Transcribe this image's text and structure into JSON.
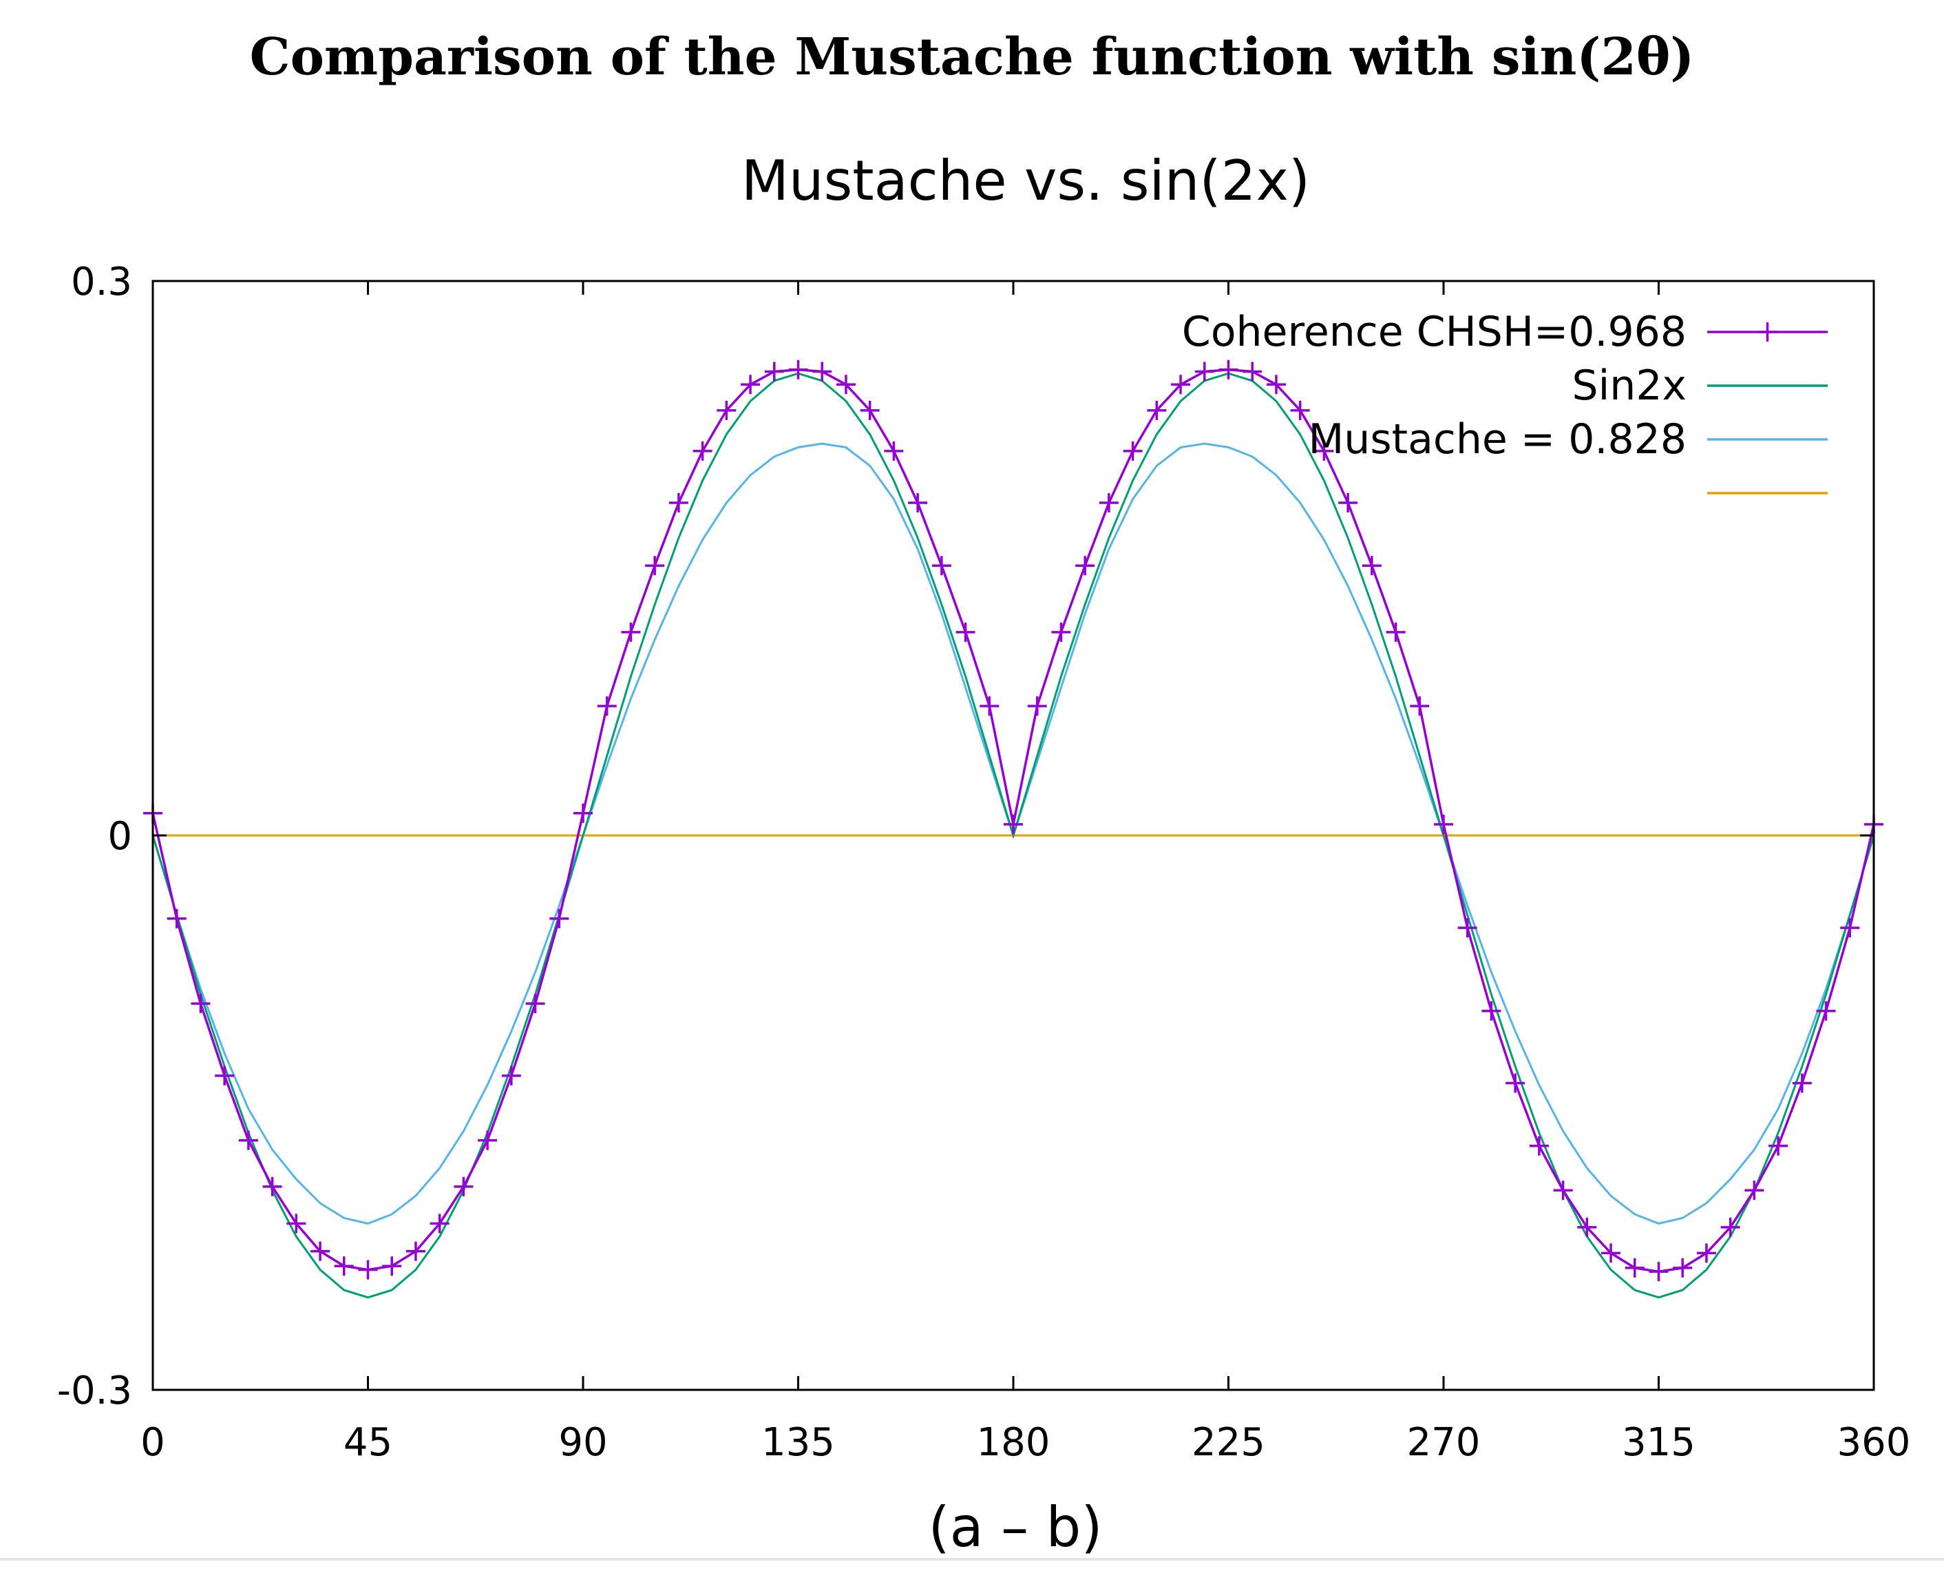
{
  "page_title": "Comparison of the Mustache function with sin(2θ)",
  "chart_data": {
    "type": "line",
    "title": "Mustache vs. sin(2x)",
    "xlabel": "(a – b)",
    "ylabel": "",
    "xlim": [
      0,
      360
    ],
    "ylim": [
      -0.3,
      0.3
    ],
    "x_ticks": [
      0,
      45,
      90,
      135,
      180,
      225,
      270,
      315,
      360
    ],
    "y_ticks": [
      -0.3,
      0,
      0.3
    ],
    "y_tick_labels": [
      "-0.3",
      "0",
      "0.3"
    ],
    "grid": false,
    "legend_position": "top-right",
    "colors": {
      "coherence": "#9400d3",
      "sin2x": "#009e73",
      "mustache": "#56b4e9",
      "baseline": "#e69f00"
    },
    "series": [
      {
        "name": "Coherence CHSH=0.968",
        "marker": "plus",
        "x": [
          0,
          5,
          10,
          15,
          20,
          25,
          30,
          35,
          40,
          45,
          50,
          55,
          60,
          65,
          70,
          75,
          80,
          85,
          90,
          95,
          100,
          105,
          110,
          115,
          120,
          125,
          130,
          135,
          140,
          145,
          150,
          155,
          160,
          165,
          170,
          175,
          180,
          185,
          190,
          195,
          200,
          205,
          210,
          215,
          220,
          225,
          230,
          235,
          240,
          245,
          250,
          255,
          260,
          265,
          270,
          275,
          280,
          285,
          290,
          295,
          300,
          305,
          310,
          315,
          320,
          325,
          330,
          335,
          340,
          345,
          350,
          355,
          360
        ],
        "values": [
          0.012,
          -0.045,
          -0.091,
          -0.13,
          -0.165,
          -0.19,
          -0.21,
          -0.225,
          -0.233,
          -0.235,
          -0.233,
          -0.225,
          -0.21,
          -0.19,
          -0.165,
          -0.13,
          -0.091,
          -0.045,
          0.012,
          0.07,
          0.11,
          0.146,
          0.18,
          0.208,
          0.23,
          0.244,
          0.251,
          0.252,
          0.251,
          0.244,
          0.23,
          0.208,
          0.18,
          0.146,
          0.11,
          0.07,
          0.006,
          0.07,
          0.11,
          0.146,
          0.18,
          0.208,
          0.23,
          0.244,
          0.251,
          0.252,
          0.251,
          0.244,
          0.23,
          0.208,
          0.18,
          0.146,
          0.11,
          0.07,
          0.006,
          -0.05,
          -0.095,
          -0.134,
          -0.168,
          -0.192,
          -0.212,
          -0.226,
          -0.234,
          -0.236,
          -0.234,
          -0.226,
          -0.212,
          -0.192,
          -0.168,
          -0.134,
          -0.095,
          -0.05,
          0.006
        ]
      },
      {
        "name": "Sin2x",
        "x": [
          0,
          5,
          10,
          15,
          20,
          25,
          30,
          35,
          40,
          45,
          50,
          55,
          60,
          65,
          70,
          75,
          80,
          85,
          90,
          95,
          100,
          105,
          110,
          115,
          120,
          125,
          130,
          135,
          140,
          145,
          150,
          155,
          160,
          165,
          170,
          175,
          180,
          185,
          190,
          195,
          200,
          205,
          210,
          215,
          220,
          225,
          230,
          235,
          240,
          245,
          250,
          255,
          260,
          265,
          270,
          275,
          280,
          285,
          290,
          295,
          300,
          305,
          310,
          315,
          320,
          325,
          330,
          335,
          340,
          345,
          350,
          355,
          360
        ],
        "values": [
          0,
          -0.043,
          -0.086,
          -0.125,
          -0.161,
          -0.192,
          -0.217,
          -0.235,
          -0.246,
          -0.25,
          -0.246,
          -0.235,
          -0.217,
          -0.192,
          -0.161,
          -0.125,
          -0.086,
          -0.043,
          0,
          0.043,
          0.086,
          0.125,
          0.161,
          0.192,
          0.217,
          0.235,
          0.246,
          0.25,
          0.246,
          0.235,
          0.217,
          0.192,
          0.161,
          0.125,
          0.086,
          0.043,
          0,
          0.043,
          0.086,
          0.125,
          0.161,
          0.192,
          0.217,
          0.235,
          0.246,
          0.25,
          0.246,
          0.235,
          0.217,
          0.192,
          0.161,
          0.125,
          0.086,
          0.043,
          0,
          -0.043,
          -0.086,
          -0.125,
          -0.161,
          -0.192,
          -0.217,
          -0.235,
          -0.246,
          -0.25,
          -0.246,
          -0.235,
          -0.217,
          -0.192,
          -0.161,
          -0.125,
          -0.086,
          -0.043,
          0
        ]
      },
      {
        "name": "Mustache = 0.828",
        "x": [
          0,
          5,
          10,
          15,
          20,
          25,
          30,
          35,
          40,
          45,
          50,
          55,
          60,
          65,
          70,
          75,
          80,
          85,
          90,
          95,
          100,
          105,
          110,
          115,
          120,
          125,
          130,
          135,
          140,
          145,
          150,
          155,
          160,
          165,
          170,
          175,
          180,
          185,
          190,
          195,
          200,
          205,
          210,
          215,
          220,
          225,
          230,
          235,
          240,
          245,
          250,
          255,
          260,
          265,
          270,
          275,
          280,
          285,
          290,
          295,
          300,
          305,
          310,
          315,
          320,
          325,
          330,
          335,
          340,
          345,
          350,
          355,
          360
        ],
        "values": [
          0,
          -0.043,
          -0.083,
          -0.118,
          -0.148,
          -0.17,
          -0.186,
          -0.199,
          -0.207,
          -0.21,
          -0.205,
          -0.195,
          -0.18,
          -0.16,
          -0.135,
          -0.106,
          -0.074,
          -0.038,
          0,
          0.038,
          0.074,
          0.106,
          0.135,
          0.16,
          0.18,
          0.195,
          0.205,
          0.21,
          0.212,
          0.21,
          0.2,
          0.182,
          0.155,
          0.12,
          0.08,
          0.04,
          0,
          0.04,
          0.08,
          0.12,
          0.155,
          0.182,
          0.2,
          0.21,
          0.212,
          0.21,
          0.205,
          0.195,
          0.18,
          0.16,
          0.135,
          0.106,
          0.074,
          0.038,
          0,
          -0.038,
          -0.074,
          -0.106,
          -0.135,
          -0.16,
          -0.18,
          -0.195,
          -0.205,
          -0.21,
          -0.207,
          -0.199,
          -0.186,
          -0.17,
          -0.148,
          -0.118,
          -0.083,
          -0.043,
          0
        ]
      },
      {
        "x": [
          0,
          360
        ],
        "values": [
          0,
          0
        ]
      }
    ]
  }
}
